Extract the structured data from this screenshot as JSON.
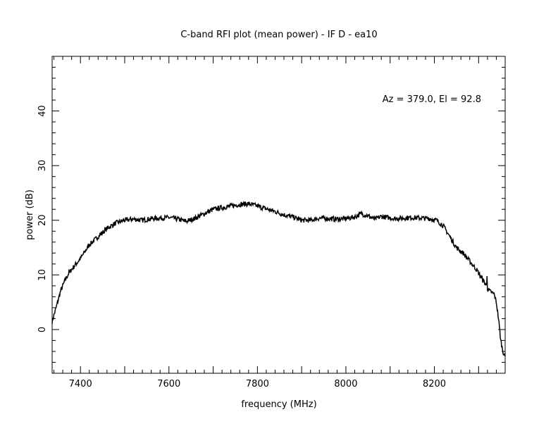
{
  "chart_data": {
    "type": "line",
    "title": "C-band RFI plot (mean power) - IF D - ea10",
    "xlabel": "frequency (MHz)",
    "ylabel": "power (dB)",
    "annotation": "Az = 379.0, El = 92.8",
    "xlim": [
      7336,
      8360
    ],
    "ylim": [
      -8,
      50
    ],
    "x_ticks": [
      7400,
      7600,
      7800,
      8000,
      8200
    ],
    "y_ticks": [
      0,
      10,
      20,
      30,
      40
    ],
    "grid": false,
    "line_color": "#000000",
    "series": [
      {
        "x": [
          7336,
          7345,
          7355,
          7365,
          7375,
          7390,
          7400,
          7420,
          7440,
          7460,
          7480,
          7500,
          7520,
          7540,
          7560,
          7580,
          7600,
          7620,
          7640,
          7660,
          7680,
          7700,
          7720,
          7740,
          7760,
          7780,
          7800,
          7820,
          7840,
          7860,
          7880,
          7900,
          7920,
          7940,
          7960,
          7980,
          8000,
          8020,
          8035,
          8050,
          8065,
          8080,
          8095,
          8110,
          8130,
          8150,
          8170,
          8190,
          8205,
          8220,
          8235,
          8250,
          8265,
          8280,
          8295,
          8310,
          8318,
          8319,
          8320,
          8325,
          8335,
          8340,
          8345,
          8350,
          8355,
          8360
        ],
        "values": [
          1.5,
          4.0,
          7.0,
          9.0,
          10.5,
          12.0,
          13.0,
          15.5,
          17.0,
          18.5,
          19.5,
          20.0,
          20.2,
          20.0,
          20.3,
          20.4,
          20.5,
          20.2,
          19.8,
          20.4,
          21.2,
          22.0,
          22.3,
          22.6,
          22.9,
          23.0,
          22.6,
          22.1,
          21.6,
          21.0,
          20.6,
          20.0,
          20.0,
          20.4,
          20.3,
          20.2,
          20.3,
          20.6,
          21.2,
          20.8,
          20.2,
          20.7,
          20.5,
          20.3,
          20.4,
          20.5,
          20.4,
          20.3,
          20.0,
          19.0,
          17.0,
          15.0,
          14.0,
          12.5,
          11.0,
          9.0,
          8.0,
          10.0,
          7.5,
          7.0,
          6.5,
          5.0,
          2.0,
          -2.0,
          -4.0,
          -5.0
        ]
      }
    ]
  }
}
